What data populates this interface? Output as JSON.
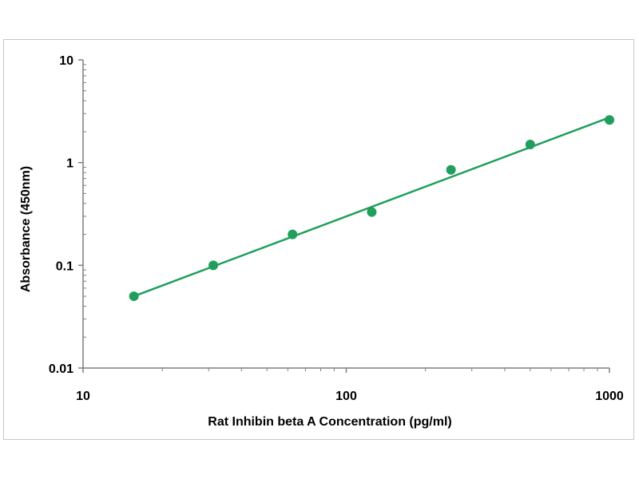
{
  "chart_data": {
    "type": "scatter",
    "title": "",
    "xlabel": "Rat Inhibin beta A Concentration (pg/ml)",
    "ylabel": "Absorbance (450nm)",
    "x_scale": "log",
    "y_scale": "log",
    "xlim": [
      10,
      1000
    ],
    "ylim": [
      0.01,
      10
    ],
    "x_ticks": [
      "10",
      "100",
      "1000"
    ],
    "y_ticks": [
      "0.01",
      "0.1",
      "1",
      "10"
    ],
    "grid": false,
    "legend": "none",
    "series": [
      {
        "x": [
          15.6,
          31.25,
          62.5,
          125,
          250,
          500,
          1000
        ],
        "y": [
          0.05,
          0.1,
          0.2,
          0.33,
          0.85,
          1.5,
          2.6
        ],
        "color": "#1f9e5c"
      }
    ],
    "fit_line": {
      "x": [
        15.6,
        1000
      ],
      "y": [
        0.05,
        2.75
      ],
      "color": "#1f9e5c"
    }
  }
}
